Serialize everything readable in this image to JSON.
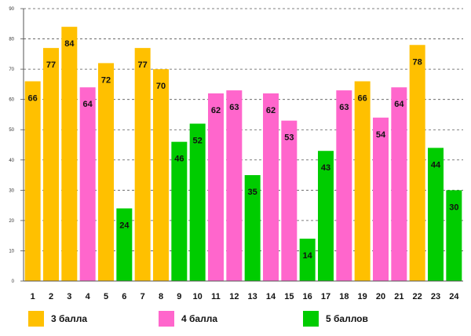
{
  "chart_data": {
    "type": "bar",
    "title": "",
    "xlabel": "",
    "ylabel": "",
    "ylim": [
      0,
      90
    ],
    "yticks": [
      0,
      10,
      20,
      30,
      40,
      50,
      60,
      70,
      80,
      90
    ],
    "grid": true,
    "categories": [
      "1",
      "2",
      "3",
      "4",
      "5",
      "6",
      "7",
      "8",
      "9",
      "10",
      "11",
      "12",
      "13",
      "14",
      "15",
      "16",
      "17",
      "18",
      "19",
      "20",
      "21",
      "22",
      "23",
      "24"
    ],
    "values": [
      66,
      77,
      84,
      64,
      72,
      24,
      77,
      70,
      46,
      52,
      62,
      63,
      35,
      62,
      53,
      14,
      43,
      63,
      66,
      54,
      64,
      78,
      44,
      30
    ],
    "groups": [
      "3 балла",
      "3 балла",
      "3 балла",
      "4 балла",
      "3 балла",
      "5 баллов",
      "3 балла",
      "3 балла",
      "5 баллов",
      "5 баллов",
      "4 балла",
      "4 балла",
      "5 баллов",
      "4 балла",
      "4 балла",
      "5 баллов",
      "5 баллов",
      "4 балла",
      "3 балла",
      "4 балла",
      "4 балла",
      "3 балла",
      "5 баллов",
      "5 баллов"
    ],
    "legend": [
      {
        "name": "3 балла",
        "color": "#FFC000"
      },
      {
        "name": "4 балла",
        "color": "#FF66CC"
      },
      {
        "name": "5 баллов",
        "color": "#00CC00"
      }
    ],
    "legend_position": "bottom"
  }
}
